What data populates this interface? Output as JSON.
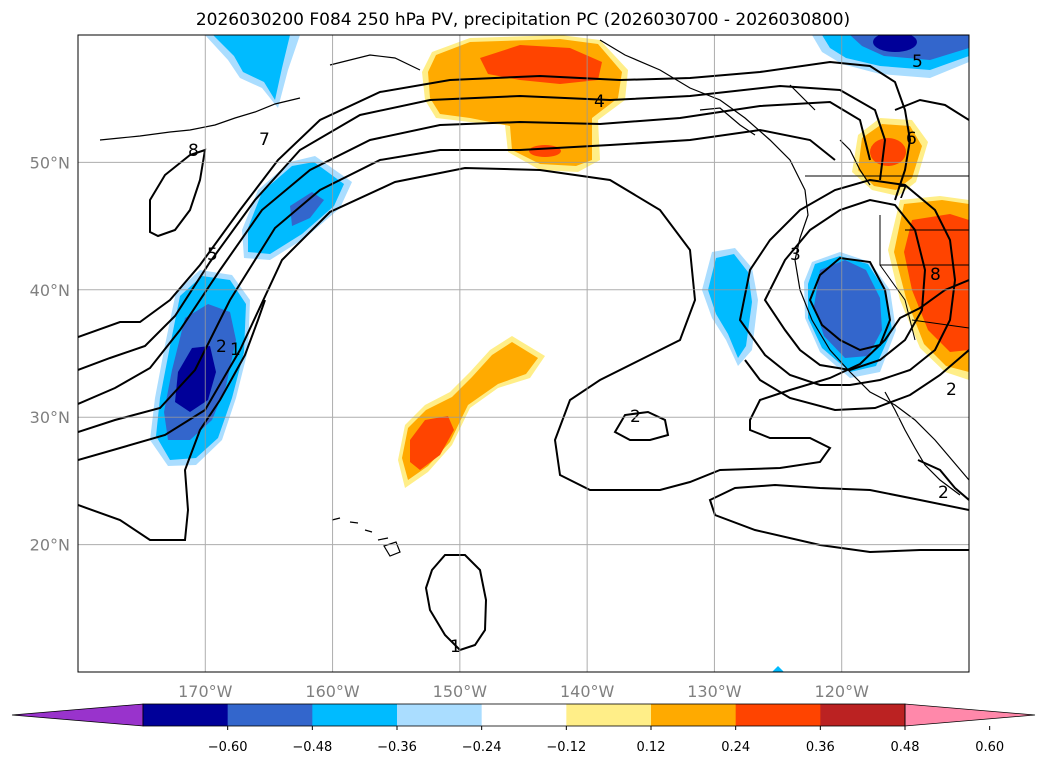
{
  "title": "2026030200 F084 250 hPa PV, precipitation PC (2026030700 - 2026030800)",
  "map": {
    "lat_labels": [
      {
        "text": "50°N",
        "lat": 50
      },
      {
        "text": "40°N",
        "lat": 40
      },
      {
        "text": "30°N",
        "lat": 30
      },
      {
        "text": "20°N",
        "lat": 20
      }
    ],
    "lon_labels": [
      {
        "text": "170°W",
        "lon": -170
      },
      {
        "text": "160°W",
        "lon": -160
      },
      {
        "text": "150°W",
        "lon": -150
      },
      {
        "text": "140°W",
        "lon": -140
      },
      {
        "text": "130°W",
        "lon": -130
      },
      {
        "text": "120°W",
        "lon": -120
      }
    ],
    "extent": {
      "lon_min": -180,
      "lon_max": -110,
      "lat_min": 10,
      "lat_max": 60
    },
    "grid": true
  },
  "colorbar": {
    "colors": [
      "#9933cc",
      "#000099",
      "#3366cc",
      "#00bbff",
      "#aaddff",
      "#ffffff",
      "#ffee88",
      "#ffaa00",
      "#ff4400",
      "#bb2222",
      "#ff88aa"
    ],
    "labels": [
      "−0.60",
      "−0.48",
      "−0.36",
      "−0.24",
      "−0.12",
      "0.12",
      "0.24",
      "0.36",
      "0.48",
      "0.60"
    ]
  },
  "contour_labels": [
    "8",
    "7",
    "5",
    "2",
    "4",
    "1",
    "5",
    "6",
    "7",
    "8",
    "3",
    "2",
    "2",
    "1",
    "2"
  ]
}
